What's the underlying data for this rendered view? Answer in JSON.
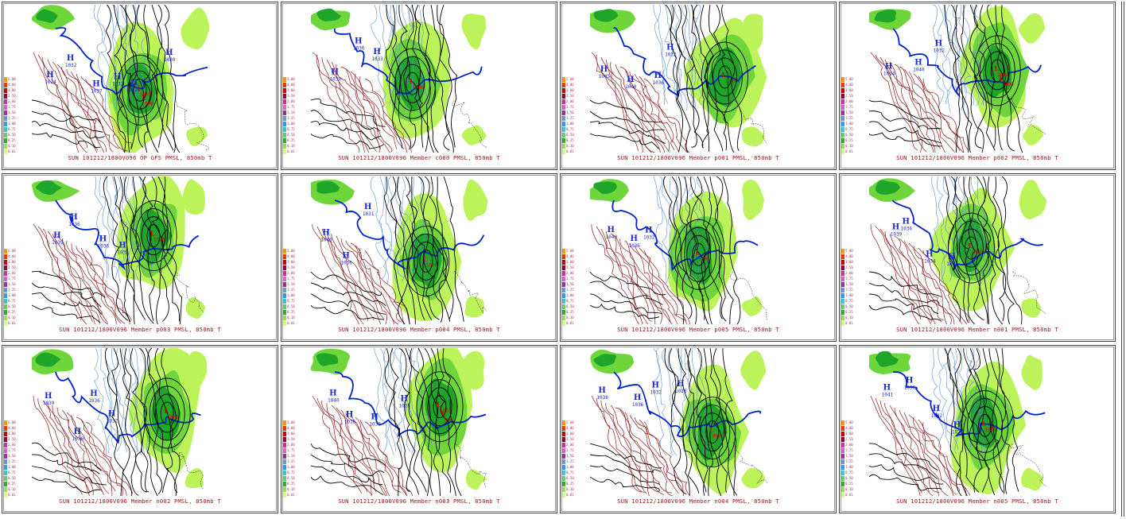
{
  "title": "",
  "panels": [
    {
      "caption": "SUN 101212/1800V096  OP GFS PMSL, 850mb T",
      "highs": [
        "1024",
        "1032",
        "1037",
        "1032",
        "1028",
        "1030"
      ],
      "lows": [
        "1001",
        "999"
      ],
      "variant": 0
    },
    {
      "caption": "SUN 101212/1800V096  Member c000 PMSL, 850mb T",
      "highs": [
        "1039",
        "1036",
        "1033"
      ],
      "lows": [
        "1000"
      ],
      "variant": 1
    },
    {
      "caption": "SUN 101212/1800V096  Member p001 PMSL, 850mb T",
      "highs": [
        "1045",
        "1040",
        "1036",
        "1032"
      ],
      "lows": [
        "1000"
      ],
      "variant": 2
    },
    {
      "caption": "SUN 101212/1800V096  Member p002 PMSL, 850mb T",
      "highs": [
        "1044",
        "1040",
        "1032"
      ],
      "lows": [
        "1002",
        "1000"
      ],
      "variant": 3
    },
    {
      "caption": "SUN 101212/1800V096  Member p003 PMSL, 850mb T",
      "highs": [
        "1039",
        "1036",
        "1036",
        "1032"
      ],
      "lows": [
        "1000"
      ],
      "variant": 4
    },
    {
      "caption": "SUN 101212/1800V096  Member p004 PMSL, 850mb T",
      "highs": [
        "1040",
        "1036",
        "1031"
      ],
      "lows": [
        "1000"
      ],
      "variant": 5
    },
    {
      "caption": "SUN 101212/1800V096  Member p005 PMSL, 850mb T",
      "highs": [
        "1040",
        "1036",
        "1032"
      ],
      "lows": [
        "999"
      ],
      "variant": 6
    },
    {
      "caption": "SUN 101212/1800V096  Member n001 PMSL, 850mb T",
      "highs": [
        "1039",
        "1036",
        "1034",
        "1032"
      ],
      "lows": [
        "1000"
      ],
      "variant": 7
    },
    {
      "caption": "SUN 101212/1800V096  Member n002 PMSL, 850mb T",
      "highs": [
        "1039",
        "1036",
        "1036",
        "1032"
      ],
      "lows": [
        "1000"
      ],
      "variant": 8
    },
    {
      "caption": "SUN 101212/1800V096  Member n003 PMSL, 850mb T",
      "highs": [
        "1040",
        "1036",
        "1032",
        "1028"
      ],
      "lows": [
        "1001",
        "999"
      ],
      "variant": 9
    },
    {
      "caption": "SUN 101212/1800V096  Member n004 PMSL, 850mb T",
      "highs": [
        "1038",
        "1036",
        "1032",
        "1028"
      ],
      "lows": [
        "999"
      ],
      "variant": 10
    },
    {
      "caption": "SUN 101212/1800V096  Member n005 PMSL, 850mb T",
      "highs": [
        "1041",
        "1036",
        "1032",
        "1028"
      ],
      "lows": [
        "1000"
      ],
      "variant": 11
    }
  ],
  "precip_scale": {
    "labels": [
      "5.00",
      "4.00",
      "3.00",
      "2.50",
      "2.00",
      "1.75",
      "1.50",
      "1.25",
      "1.00",
      "0.75",
      "0.50",
      "0.25",
      "0.10",
      "0.01"
    ],
    "colors": [
      "#ff9900",
      "#ff3300",
      "#cc0000",
      "#990033",
      "#cc3399",
      "#cc66cc",
      "#993399",
      "#6699cc",
      "#3399ff",
      "#33cccc",
      "#66cc66",
      "#33aa33",
      "#99dd55",
      "#ccff99"
    ]
  },
  "colors": {
    "precip_light": "#bdf35a",
    "precip_mid": "#6ed63b",
    "precip_dark": "#1fa62a",
    "isobar": "#000000",
    "zero_isotherm": "#0022cc",
    "cold_isotherm": "#5b8fcf",
    "warm_isotherm": "#8b1a1a",
    "high_label": "#1a2bd0",
    "low_label": "#dd0000",
    "caption": "#8b1a1a"
  }
}
